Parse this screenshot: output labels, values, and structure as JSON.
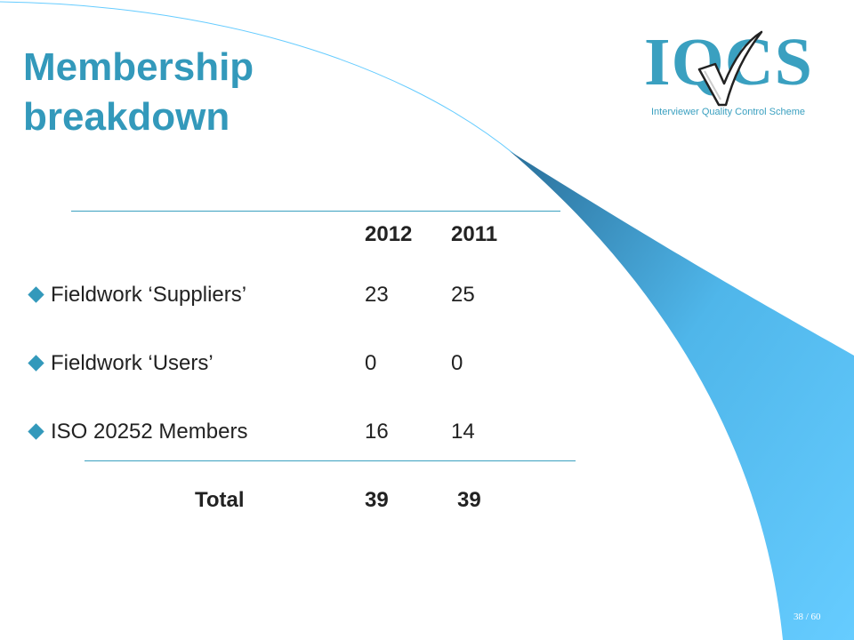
{
  "title": {
    "line1": "Membership",
    "line2": "breakdown"
  },
  "logo": {
    "letters": "IQCS",
    "tagline": "Interviewer Quality Control Scheme"
  },
  "table": {
    "headers": [
      "2012",
      "2011"
    ],
    "rows": [
      {
        "label": "Fieldwork ‘Suppliers’",
        "v2012": "23",
        "v2011": "25"
      },
      {
        "label": "Fieldwork ‘Users’",
        "v2012": "0",
        "v2011": "0"
      },
      {
        "label": "ISO 20252 Members",
        "v2012": "16",
        "v2011": "14"
      }
    ],
    "total": {
      "label": "Total",
      "v2012": "39",
      "v2011": "39"
    }
  },
  "page_number": "38 / 60",
  "colors": {
    "accent": "#3399bb",
    "swoosh_dark": "#2a6f99",
    "swoosh_light": "#66ccff"
  }
}
